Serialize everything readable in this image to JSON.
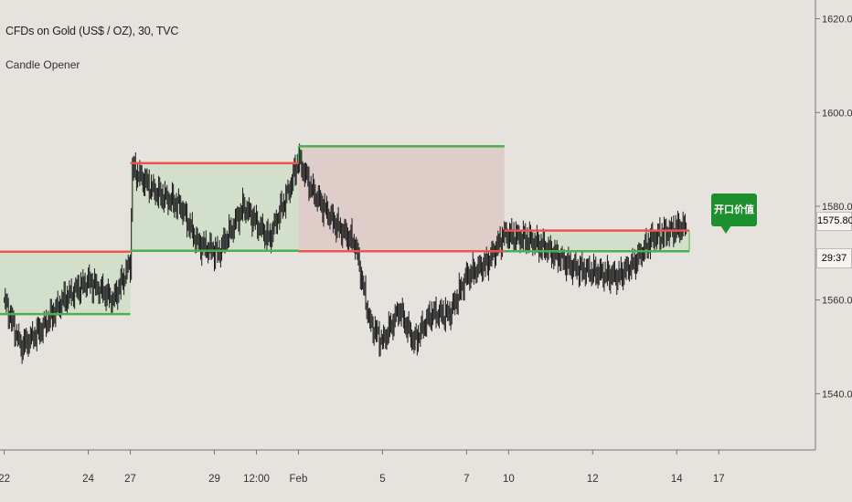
{
  "header": {
    "title": "CFDs on Gold (US$ / OZ), 30, TVC",
    "indicator": "Candle Opener"
  },
  "price_label": "1575.80",
  "countdown": "29:37",
  "callout_label": "开口价值",
  "colors": {
    "background": "#e6e3df",
    "up_line": "#4caf50",
    "down_line": "#ef5350",
    "up_fill": "#d2dfcb",
    "down_fill": "#dfcdc9",
    "candle": "#1a1a1a",
    "callout": "#1e8f2e"
  },
  "chart_data": {
    "type": "line",
    "title": "CFDs on Gold (US$ / OZ), 30, TVC",
    "ylim": [
      1528,
      1624
    ],
    "y_ticks": [
      "1620.00",
      "1600.00",
      "1580.00",
      "1560.00",
      "1540.00"
    ],
    "y_tick_values": [
      1620,
      1600,
      1580,
      1560,
      1540
    ],
    "x_ticks": [
      "22",
      "24",
      "27",
      "29",
      "12:00",
      "Feb",
      "5",
      "7",
      "10",
      "12",
      "14",
      "17"
    ],
    "x_tick_index": [
      0,
      2,
      3,
      5,
      6,
      7,
      9,
      11,
      12,
      14,
      16,
      17
    ],
    "x_range": [
      -0.1,
      19.3
    ],
    "last_price": 1575.8,
    "weeks": [
      {
        "start": -0.1,
        "end": 3.0,
        "open": 1557.0,
        "close": 1570.3,
        "direction": "up"
      },
      {
        "start": 3.0,
        "end": 7.0,
        "open": 1570.5,
        "close": 1589.2,
        "direction": "up"
      },
      {
        "start": 7.0,
        "end": 11.9,
        "open": 1592.8,
        "close": 1570.4,
        "direction": "down"
      },
      {
        "start": 11.9,
        "end": 16.3,
        "open": 1570.4,
        "close": 1574.8,
        "direction": "up"
      }
    ],
    "price_anchors": [
      [
        0.0,
        1560
      ],
      [
        0.4,
        1550
      ],
      [
        0.9,
        1554
      ],
      [
        1.4,
        1560
      ],
      [
        2.0,
        1564
      ],
      [
        2.6,
        1560
      ],
      [
        3.0,
        1568
      ],
      [
        3.05,
        1588
      ],
      [
        3.6,
        1583
      ],
      [
        4.2,
        1580
      ],
      [
        4.6,
        1572
      ],
      [
        5.1,
        1570
      ],
      [
        5.7,
        1580
      ],
      [
        6.3,
        1573
      ],
      [
        6.8,
        1584
      ],
      [
        7.0,
        1590
      ],
      [
        7.35,
        1583
      ],
      [
        7.9,
        1576
      ],
      [
        8.35,
        1572
      ],
      [
        8.7,
        1555
      ],
      [
        9.0,
        1551
      ],
      [
        9.4,
        1558
      ],
      [
        9.75,
        1551
      ],
      [
        10.15,
        1557
      ],
      [
        10.6,
        1557
      ],
      [
        11.0,
        1565
      ],
      [
        11.5,
        1568
      ],
      [
        11.9,
        1574
      ],
      [
        12.45,
        1573
      ],
      [
        12.9,
        1571
      ],
      [
        13.5,
        1567
      ],
      [
        14.0,
        1566
      ],
      [
        14.6,
        1565
      ],
      [
        15.0,
        1568
      ],
      [
        15.4,
        1573
      ],
      [
        15.9,
        1575
      ],
      [
        16.25,
        1575.8
      ]
    ]
  }
}
